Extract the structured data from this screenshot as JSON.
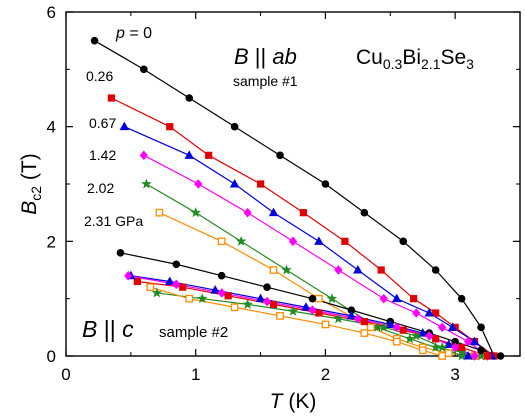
{
  "chart_data": {
    "type": "line",
    "xlabel": "T",
    "xunit": " (K)",
    "ylabel": "B",
    "ylabel_sub": "c2",
    "yunit": " (T)",
    "xlim": [
      0,
      3.5
    ],
    "ylim": [
      0,
      6
    ],
    "x_ticks": [
      "0",
      "1",
      "2",
      "3"
    ],
    "y_ticks": [
      "0",
      "2",
      "4",
      "6"
    ],
    "grid": false,
    "annotations": {
      "compound": {
        "a": "Cu",
        "b": "0.3",
        "c": "Bi",
        "d": "2.1",
        "e": "Se",
        "f": "3"
      },
      "orient_ab": {
        "b": "B",
        "sep": " || ",
        "dir": "ab"
      },
      "sample1": "sample #1",
      "orient_c": {
        "b": "B",
        "sep": " || ",
        "dir": "c"
      },
      "sample2": "sample #2",
      "pressure_labels": [
        "p = 0",
        "0.26",
        "0.67",
        "1.42",
        "2.02",
        "2.31 GPa"
      ]
    },
    "series": [
      {
        "group": "ab",
        "color": "#000000",
        "marker": "circle-filled",
        "x": [
          0.22,
          0.6,
          0.95,
          1.3,
          1.65,
          2.0,
          2.3,
          2.6,
          2.85,
          3.05,
          3.2,
          3.3
        ],
        "y": [
          5.5,
          5.0,
          4.5,
          4.0,
          3.5,
          3.0,
          2.5,
          2.0,
          1.5,
          1.0,
          0.5,
          0.0
        ]
      },
      {
        "group": "ab",
        "color": "#e00000",
        "marker": "square-filled",
        "x": [
          0.35,
          0.8,
          1.1,
          1.5,
          1.83,
          2.15,
          2.43,
          2.68,
          2.85,
          3.0,
          3.15,
          3.3
        ],
        "y": [
          4.5,
          4.0,
          3.5,
          3.0,
          2.5,
          2.0,
          1.5,
          1.0,
          0.75,
          0.5,
          0.25,
          0.0
        ]
      },
      {
        "group": "ab",
        "color": "#0000dd",
        "marker": "triangle-filled",
        "x": [
          0.45,
          0.95,
          1.3,
          1.6,
          1.95,
          2.25,
          2.55,
          2.8,
          2.98,
          3.15,
          3.28
        ],
        "y": [
          4.0,
          3.5,
          3.0,
          2.5,
          2.0,
          1.5,
          1.0,
          0.75,
          0.5,
          0.25,
          0.0
        ]
      },
      {
        "group": "ab",
        "color": "#ff00ff",
        "marker": "diamond-filled",
        "x": [
          0.6,
          1.02,
          1.4,
          1.75,
          2.1,
          2.45,
          2.7,
          2.9,
          3.1,
          3.25
        ],
        "y": [
          3.5,
          3.0,
          2.5,
          2.0,
          1.5,
          1.0,
          0.75,
          0.5,
          0.25,
          0.0
        ]
      },
      {
        "group": "ab",
        "color": "#228b22",
        "marker": "star-filled",
        "x": [
          0.62,
          1.0,
          1.35,
          1.7,
          2.05,
          2.4,
          2.65,
          2.85,
          3.05,
          3.2
        ],
        "y": [
          3.0,
          2.5,
          2.0,
          1.5,
          1.0,
          0.5,
          0.3,
          0.15,
          0.07,
          0.0
        ]
      },
      {
        "group": "ab",
        "color": "#ff8c00",
        "marker": "square-open",
        "x": [
          0.72,
          1.2,
          1.6,
          1.95,
          2.35,
          2.55,
          2.75,
          2.95,
          3.15
        ],
        "y": [
          2.5,
          2.0,
          1.5,
          1.0,
          0.5,
          0.3,
          0.15,
          0.05,
          0.0
        ]
      },
      {
        "group": "c",
        "color": "#000000",
        "marker": "circle-filled",
        "x": [
          0.42,
          0.85,
          1.2,
          1.55,
          1.9,
          2.2,
          2.5,
          2.8,
          3.0,
          3.2,
          3.35
        ],
        "y": [
          1.8,
          1.6,
          1.4,
          1.2,
          1.0,
          0.8,
          0.6,
          0.4,
          0.25,
          0.1,
          0.0
        ]
      },
      {
        "group": "c",
        "color": "#e00000",
        "marker": "square-filled",
        "x": [
          0.55,
          0.9,
          1.25,
          1.6,
          1.95,
          2.3,
          2.6,
          2.85,
          3.05,
          3.25
        ],
        "y": [
          1.3,
          1.2,
          1.05,
          0.9,
          0.75,
          0.6,
          0.45,
          0.3,
          0.15,
          0.0
        ]
      },
      {
        "group": "c",
        "color": "#0000dd",
        "marker": "triangle-filled",
        "x": [
          0.5,
          0.8,
          1.15,
          1.5,
          1.85,
          2.2,
          2.5,
          2.75,
          2.95,
          3.1
        ],
        "y": [
          1.4,
          1.3,
          1.15,
          1.0,
          0.85,
          0.7,
          0.55,
          0.4,
          0.2,
          0.0
        ]
      },
      {
        "group": "c",
        "color": "#ff00ff",
        "marker": "diamond-filled",
        "x": [
          0.48,
          0.85,
          1.2,
          1.55,
          1.9,
          2.25,
          2.55,
          2.8,
          3.0,
          3.15
        ],
        "y": [
          1.4,
          1.25,
          1.1,
          0.95,
          0.8,
          0.65,
          0.5,
          0.35,
          0.15,
          0.0
        ]
      },
      {
        "group": "c",
        "color": "#228b22",
        "marker": "star-filled",
        "x": [
          0.7,
          1.05,
          1.4,
          1.75,
          2.1,
          2.45,
          2.7,
          2.9,
          3.05
        ],
        "y": [
          1.1,
          1.0,
          0.9,
          0.78,
          0.65,
          0.5,
          0.35,
          0.15,
          0.0
        ]
      },
      {
        "group": "c",
        "color": "#ff8c00",
        "marker": "square-open",
        "x": [
          0.65,
          0.95,
          1.3,
          1.65,
          2.0,
          2.3,
          2.55,
          2.75,
          2.9
        ],
        "y": [
          1.2,
          1.0,
          0.85,
          0.7,
          0.55,
          0.4,
          0.25,
          0.1,
          0.0
        ]
      }
    ]
  }
}
